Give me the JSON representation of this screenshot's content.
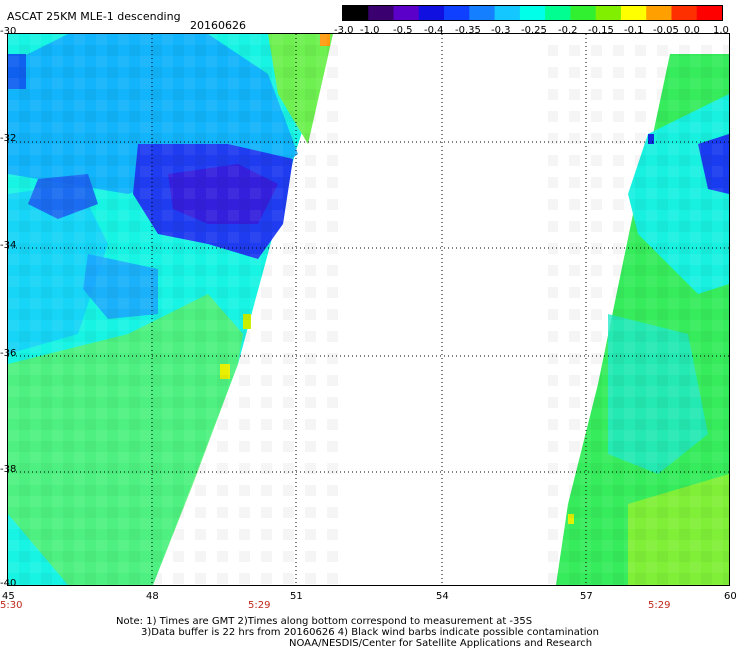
{
  "header": {
    "title": "ASCAT 25KM MLE-1 descending",
    "date": "20160626"
  },
  "colorbar": {
    "labels": [
      "-3.0",
      "-1.0",
      "-0.5",
      "-0.4",
      "-0.35",
      "-0.3",
      "-0.25",
      "-0.2",
      "-0.15",
      "-0.1",
      "-0.05",
      "0.0",
      "1.0"
    ],
    "colors": [
      "#000000",
      "#3a0070",
      "#5a00c8",
      "#1010e0",
      "#1040ff",
      "#1480ff",
      "#14c8ff",
      "#00ffe8",
      "#00ff90",
      "#30f030",
      "#80f000",
      "#ffff00",
      "#ffa000",
      "#ff3000",
      "#ff0000"
    ]
  },
  "map": {
    "lat_labels": [
      "-30",
      "-32",
      "-34",
      "-36",
      "-38",
      "-40"
    ],
    "lon_labels": [
      "45",
      "48",
      "51",
      "54",
      "57",
      "60"
    ],
    "times": [
      "5:30",
      "5:29",
      "5:29"
    ],
    "grid": true
  },
  "notes": [
    "Note: 1) Times are GMT 2)Times along bottom correspond to measurement at -35S",
    "3)Data buffer is 22 hrs from 20160626 4) Black wind barbs indicate possible contamination",
    "NOAA/NESDIS/Center for Satellite Applications and Research"
  ]
}
